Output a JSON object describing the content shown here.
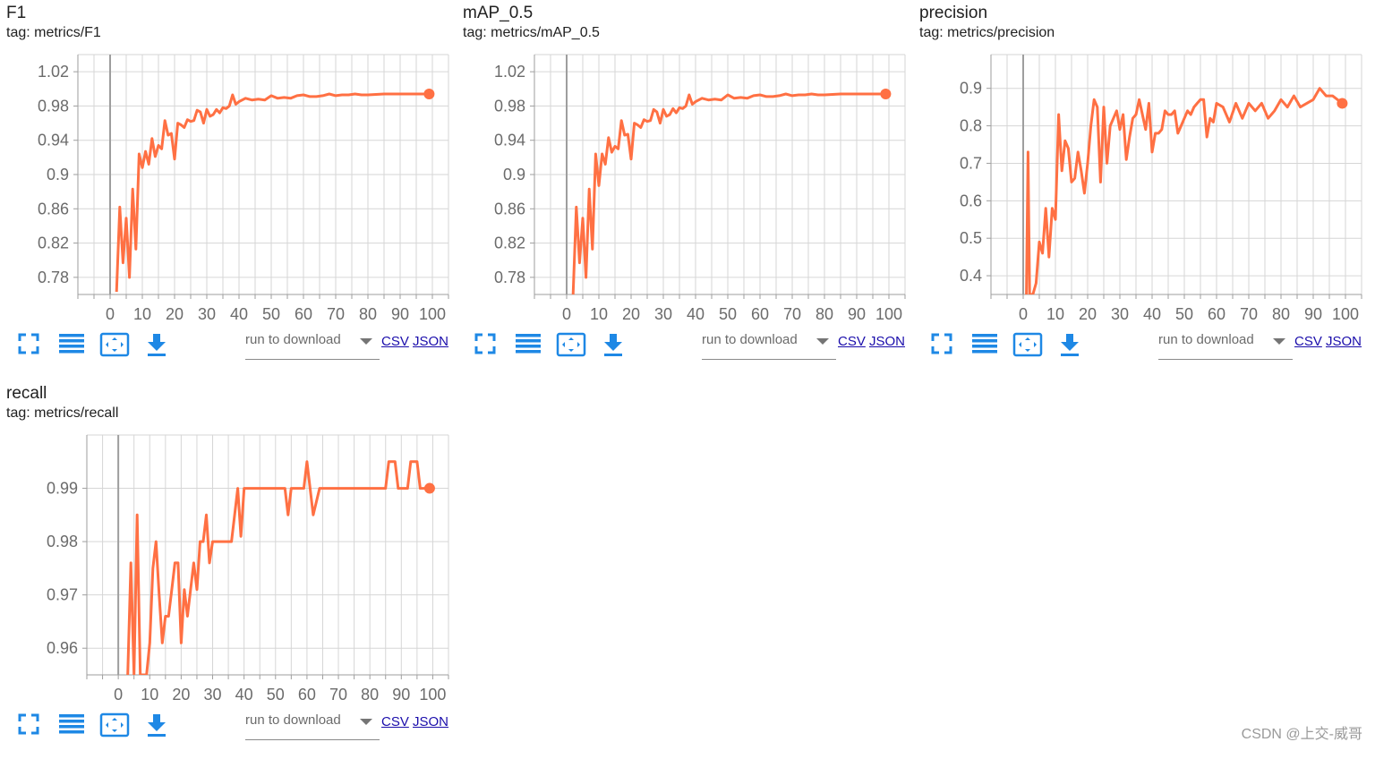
{
  "colors": {
    "line": "#ff7043",
    "grid": "#d6d6d6",
    "axis": "#9e9e9e",
    "zero": "#9e9e9e",
    "icon": "#1e88e5",
    "tick": "#6b6b6b"
  },
  "toolbar": {
    "run_label": "run to download",
    "csv": "CSV",
    "json": "JSON",
    "icons": [
      "fullscreen-icon",
      "list-icon",
      "fit-domain-icon",
      "download-icon"
    ]
  },
  "watermark": "CSDN @上交-威哥",
  "cards": [
    {
      "title": "F1",
      "tag": "tag: metrics/F1"
    },
    {
      "title": "mAP_0.5",
      "tag": "tag: metrics/mAP_0.5"
    },
    {
      "title": "precision",
      "tag": "tag: metrics/precision"
    },
    {
      "title": "recall",
      "tag": "tag: metrics/recall"
    }
  ],
  "chart_data": [
    {
      "type": "line",
      "title": "F1",
      "xlabel": "",
      "ylabel": "",
      "xlim": [
        -10,
        105
      ],
      "ylim": [
        0.76,
        1.04
      ],
      "grid": true,
      "x_ticks": [
        0,
        10,
        20,
        30,
        40,
        50,
        60,
        70,
        80,
        90,
        100
      ],
      "y_ticks": [
        0.78,
        0.82,
        0.86,
        0.9,
        0.94,
        0.98,
        1.02
      ],
      "y_tick_labels": [
        "0.78",
        "0.82",
        "0.86",
        "0.9",
        "0.94",
        "0.98",
        "1.02"
      ],
      "series": [
        {
          "x": [
            2,
            3,
            4,
            5,
            6,
            7,
            8,
            9,
            10,
            11,
            12,
            13,
            14,
            15,
            16,
            17,
            18,
            19,
            20,
            21,
            22,
            23,
            24,
            25,
            26,
            27,
            28,
            29,
            30,
            31,
            32,
            33,
            34,
            35,
            36,
            37,
            38,
            39,
            40,
            42,
            44,
            46,
            48,
            50,
            52,
            54,
            56,
            58,
            60,
            62,
            64,
            66,
            68,
            70,
            72,
            74,
            76,
            78,
            80,
            85,
            90,
            95,
            99
          ],
          "y": [
            0.763,
            0.862,
            0.797,
            0.849,
            0.78,
            0.883,
            0.813,
            0.924,
            0.908,
            0.927,
            0.912,
            0.942,
            0.921,
            0.934,
            0.93,
            0.963,
            0.946,
            0.948,
            0.918,
            0.96,
            0.958,
            0.955,
            0.964,
            0.962,
            0.963,
            0.975,
            0.973,
            0.96,
            0.976,
            0.968,
            0.97,
            0.976,
            0.972,
            0.978,
            0.977,
            0.98,
            0.993,
            0.982,
            0.985,
            0.989,
            0.987,
            0.988,
            0.987,
            0.992,
            0.989,
            0.99,
            0.989,
            0.992,
            0.993,
            0.991,
            0.991,
            0.992,
            0.994,
            0.992,
            0.993,
            0.993,
            0.994,
            0.993,
            0.993,
            0.994,
            0.994,
            0.994,
            0.994
          ]
        }
      ]
    },
    {
      "type": "line",
      "title": "mAP_0.5",
      "xlabel": "",
      "ylabel": "",
      "xlim": [
        -10,
        105
      ],
      "ylim": [
        0.76,
        1.04
      ],
      "grid": true,
      "x_ticks": [
        0,
        10,
        20,
        30,
        40,
        50,
        60,
        70,
        80,
        90,
        100
      ],
      "y_ticks": [
        0.78,
        0.82,
        0.86,
        0.9,
        0.94,
        0.98,
        1.02
      ],
      "y_tick_labels": [
        "0.78",
        "0.82",
        "0.86",
        "0.9",
        "0.94",
        "0.98",
        "1.02"
      ],
      "series": [
        {
          "x": [
            2,
            3,
            4,
            5,
            6,
            7,
            8,
            9,
            10,
            11,
            12,
            13,
            14,
            15,
            16,
            17,
            18,
            19,
            20,
            21,
            22,
            23,
            24,
            25,
            26,
            27,
            28,
            29,
            30,
            31,
            32,
            33,
            34,
            35,
            36,
            37,
            38,
            39,
            40,
            42,
            44,
            46,
            48,
            50,
            52,
            54,
            56,
            58,
            60,
            62,
            64,
            66,
            68,
            70,
            72,
            74,
            76,
            78,
            80,
            85,
            90,
            95,
            99
          ],
          "y": [
            0.76,
            0.862,
            0.797,
            0.849,
            0.78,
            0.883,
            0.813,
            0.924,
            0.887,
            0.924,
            0.912,
            0.943,
            0.926,
            0.933,
            0.93,
            0.963,
            0.946,
            0.947,
            0.918,
            0.96,
            0.958,
            0.955,
            0.964,
            0.962,
            0.963,
            0.976,
            0.973,
            0.96,
            0.976,
            0.968,
            0.97,
            0.977,
            0.972,
            0.978,
            0.977,
            0.98,
            0.993,
            0.982,
            0.985,
            0.989,
            0.987,
            0.988,
            0.987,
            0.993,
            0.989,
            0.99,
            0.989,
            0.992,
            0.993,
            0.991,
            0.991,
            0.992,
            0.994,
            0.992,
            0.993,
            0.993,
            0.994,
            0.993,
            0.993,
            0.994,
            0.994,
            0.994,
            0.994
          ]
        }
      ]
    },
    {
      "type": "line",
      "title": "precision",
      "xlabel": "",
      "ylabel": "",
      "xlim": [
        -10,
        105
      ],
      "ylim": [
        0.35,
        0.99
      ],
      "grid": true,
      "x_ticks": [
        0,
        10,
        20,
        30,
        40,
        50,
        60,
        70,
        80,
        90,
        100
      ],
      "y_ticks": [
        0.4,
        0.5,
        0.6,
        0.7,
        0.8,
        0.9
      ],
      "y_tick_labels": [
        "0.4",
        "0.5",
        "0.6",
        "0.7",
        "0.8",
        "0.9"
      ],
      "series": [
        {
          "x": [
            1,
            1.5,
            2,
            3,
            4,
            5,
            6,
            7,
            8,
            9,
            10,
            11,
            12,
            13,
            14,
            15,
            16,
            17,
            18,
            19,
            20,
            21,
            22,
            23,
            24,
            25,
            26,
            27,
            28,
            29,
            30,
            31,
            32,
            33,
            34,
            35,
            36,
            37,
            38,
            39,
            40,
            41,
            42,
            43,
            44,
            45,
            46,
            47,
            48,
            49,
            50,
            51,
            52,
            53,
            54,
            55,
            56,
            57,
            58,
            59,
            60,
            62,
            64,
            66,
            68,
            70,
            72,
            74,
            76,
            78,
            80,
            82,
            84,
            86,
            88,
            90,
            92,
            94,
            96,
            99
          ],
          "y": [
            0.35,
            0.73,
            0.35,
            0.35,
            0.38,
            0.49,
            0.46,
            0.58,
            0.45,
            0.58,
            0.55,
            0.83,
            0.68,
            0.76,
            0.74,
            0.65,
            0.66,
            0.73,
            0.68,
            0.62,
            0.7,
            0.8,
            0.87,
            0.85,
            0.65,
            0.85,
            0.7,
            0.8,
            0.82,
            0.84,
            0.79,
            0.83,
            0.71,
            0.77,
            0.82,
            0.83,
            0.87,
            0.83,
            0.79,
            0.86,
            0.73,
            0.78,
            0.78,
            0.79,
            0.84,
            0.83,
            0.83,
            0.84,
            0.78,
            0.8,
            0.82,
            0.84,
            0.83,
            0.85,
            0.86,
            0.87,
            0.87,
            0.77,
            0.82,
            0.81,
            0.86,
            0.85,
            0.81,
            0.86,
            0.82,
            0.86,
            0.84,
            0.86,
            0.82,
            0.84,
            0.87,
            0.85,
            0.88,
            0.85,
            0.86,
            0.87,
            0.9,
            0.88,
            0.88,
            0.86
          ]
        }
      ]
    },
    {
      "type": "line",
      "title": "recall",
      "xlabel": "",
      "ylabel": "",
      "xlim": [
        -10,
        105
      ],
      "ylim": [
        0.955,
        1.0
      ],
      "grid": true,
      "x_ticks": [
        0,
        10,
        20,
        30,
        40,
        50,
        60,
        70,
        80,
        90,
        100
      ],
      "y_ticks": [
        0.96,
        0.97,
        0.98,
        0.99
      ],
      "y_tick_labels": [
        "0.96",
        "0.97",
        "0.98",
        "0.99"
      ],
      "series": [
        {
          "x": [
            3,
            4,
            5,
            6,
            7,
            8,
            9,
            10,
            11,
            12,
            13,
            14,
            15,
            16,
            17,
            18,
            19,
            20,
            21,
            22,
            23,
            24,
            25,
            26,
            27,
            28,
            29,
            30,
            31,
            32,
            33,
            34,
            35,
            36,
            37,
            38,
            39,
            40,
            41,
            42,
            43,
            44,
            45,
            46,
            47,
            48,
            49,
            50,
            52,
            53,
            54,
            55,
            56,
            57,
            58,
            59,
            60,
            61,
            62,
            64,
            66,
            68,
            70,
            72,
            74,
            76,
            78,
            80,
            82,
            84,
            85,
            86,
            87,
            88,
            89,
            90,
            91,
            92,
            93,
            94,
            95,
            96,
            97,
            98,
            99
          ],
          "y": [
            0.955,
            0.976,
            0.955,
            0.985,
            0.955,
            0.955,
            0.955,
            0.961,
            0.975,
            0.98,
            0.97,
            0.961,
            0.966,
            0.966,
            0.971,
            0.976,
            0.976,
            0.961,
            0.971,
            0.966,
            0.971,
            0.976,
            0.971,
            0.98,
            0.98,
            0.985,
            0.976,
            0.98,
            0.98,
            0.98,
            0.98,
            0.98,
            0.98,
            0.98,
            0.985,
            0.99,
            0.981,
            0.99,
            0.99,
            0.99,
            0.99,
            0.99,
            0.99,
            0.99,
            0.99,
            0.99,
            0.99,
            0.99,
            0.99,
            0.99,
            0.985,
            0.99,
            0.99,
            0.99,
            0.99,
            0.99,
            0.995,
            0.99,
            0.985,
            0.99,
            0.99,
            0.99,
            0.99,
            0.99,
            0.99,
            0.99,
            0.99,
            0.99,
            0.99,
            0.99,
            0.99,
            0.995,
            0.995,
            0.995,
            0.99,
            0.99,
            0.99,
            0.99,
            0.995,
            0.995,
            0.995,
            0.99,
            0.99,
            0.99,
            0.99
          ]
        }
      ]
    }
  ]
}
